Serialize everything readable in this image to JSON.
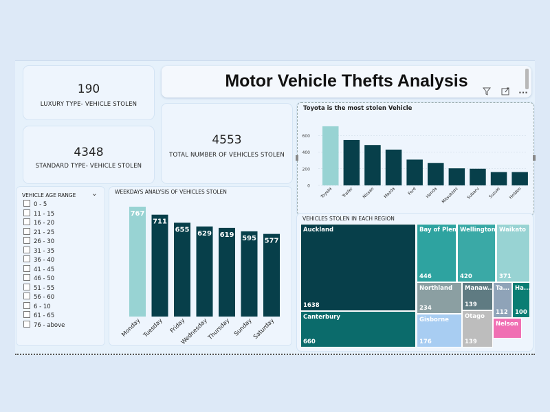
{
  "dashboard": {
    "title": "Motor Vehicle Thefts Analysis"
  },
  "kpis": {
    "luxury": {
      "value": "190",
      "label": "LUXURY TYPE- VEHICLE STOLEN"
    },
    "standard": {
      "value": "4348",
      "label": "STANDARD TYPE- VEHICLE STOLEN"
    },
    "total": {
      "value": "4553",
      "label": "TOTAL NUMBER OF VEHICLES STOLEN"
    }
  },
  "toolbar": {
    "filter_icon": "filter-icon",
    "focus_icon": "focus-mode-icon",
    "more_icon": "more-options-icon",
    "more_label": "···"
  },
  "slicer": {
    "title": "VEHICLE AGE RANGE",
    "chevron": "⌄",
    "items": [
      "0 - 5",
      "11 - 15",
      "16 - 20",
      "21 - 25",
      "26 - 30",
      "31 - 35",
      "36 - 40",
      "41 - 45",
      "46 - 50",
      "51 - 55",
      "56 - 60",
      "6 - 10",
      "61 - 65",
      "76 - above"
    ]
  },
  "weekday_chart": {
    "title": "WEEKDAYS ANALYSIS OF VEHICLES STOLEN"
  },
  "make_chart": {
    "title": "Toyota is the most  stolen Vehicle"
  },
  "region_treemap": {
    "title": "VEHICLES STOLEN IN EACH  REGION",
    "cells": [
      {
        "name": "Auckland",
        "value": "1638",
        "color": "#073f4a"
      },
      {
        "name": "Canterbury",
        "value": "660",
        "color": "#0b6b6b"
      },
      {
        "name": "Bay of Plen...",
        "value": "446",
        "color": "#2ea3a0"
      },
      {
        "name": "Wellington",
        "value": "420",
        "color": "#3aa9a6"
      },
      {
        "name": "Waikato",
        "value": "371",
        "color": "#98d3d3"
      },
      {
        "name": "Northland",
        "value": "234",
        "color": "#8b9fa2"
      },
      {
        "name": "Gisborne",
        "value": "176",
        "color": "#a8cdf2"
      },
      {
        "name": "Manaw...",
        "value": "139",
        "color": "#5f7b82"
      },
      {
        "name": "Otago",
        "value": "139",
        "color": "#bdbdbd"
      },
      {
        "name": "Ta...",
        "value": "112",
        "color": "#8fa3b8"
      },
      {
        "name": "Ha...",
        "value": "100",
        "color": "#0a7d73"
      },
      {
        "name": "Nelson",
        "value": "",
        "color": "#f06fb3"
      }
    ]
  },
  "chart_data": [
    {
      "type": "bar",
      "title": "WEEKDAYS ANALYSIS OF VEHICLES STOLEN",
      "categories": [
        "Monday",
        "Tuesday",
        "Friday",
        "Wednesday",
        "Thursday",
        "Sunday",
        "Saturday"
      ],
      "values": [
        767,
        711,
        655,
        629,
        619,
        595,
        577
      ],
      "data_labels": true,
      "highlight_color": "#98d3d3",
      "bar_color": "#073f4a",
      "grid": false
    },
    {
      "type": "bar",
      "title": "Toyota is the most  stolen Vehicle",
      "categories": [
        "Toyota",
        "Trailer",
        "Nissan",
        "Mazda",
        "Ford",
        "Honda",
        "Mitsubishi",
        "Subaru",
        "Suzuki",
        "Holden"
      ],
      "values": [
        710,
        545,
        485,
        430,
        310,
        270,
        205,
        200,
        160,
        160
      ],
      "yticks": [
        "0",
        "200",
        "400",
        "600"
      ],
      "ylim": [
        0,
        800
      ],
      "highlight_color": "#98d3d3",
      "bar_color": "#073f4a",
      "grid": true
    },
    {
      "type": "heatmap",
      "title": "VEHICLES STOLEN IN EACH  REGION",
      "categories": [
        "Auckland",
        "Canterbury",
        "Bay of Plen...",
        "Wellington",
        "Waikato",
        "Northland",
        "Gisborne",
        "Manaw...",
        "Otago",
        "Ta...",
        "Ha...",
        "Nelson"
      ],
      "values": [
        1638,
        660,
        446,
        420,
        371,
        234,
        176,
        139,
        139,
        112,
        100,
        null
      ]
    }
  ]
}
